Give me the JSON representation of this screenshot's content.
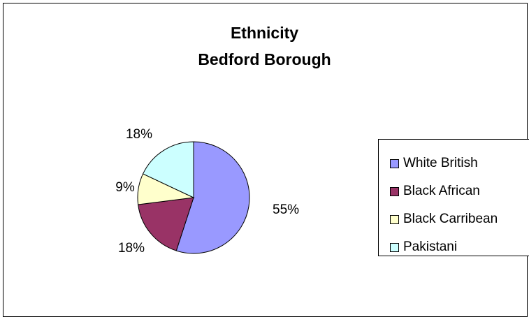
{
  "chart_data": {
    "type": "pie",
    "title_line1": "Ethnicity",
    "title_line2": "Bedford Borough",
    "slices": [
      {
        "name": "White British",
        "value": 55,
        "label": "55%",
        "color": "#9999ff"
      },
      {
        "name": "Black African",
        "value": 18,
        "label": "18%",
        "color": "#993366"
      },
      {
        "name": "Black Carribean",
        "value": 9,
        "label": "9%",
        "color": "#ffffcc"
      },
      {
        "name": "Pakistani",
        "value": 18,
        "label": "18%",
        "color": "#ccffff"
      }
    ],
    "legend_position": "right"
  }
}
